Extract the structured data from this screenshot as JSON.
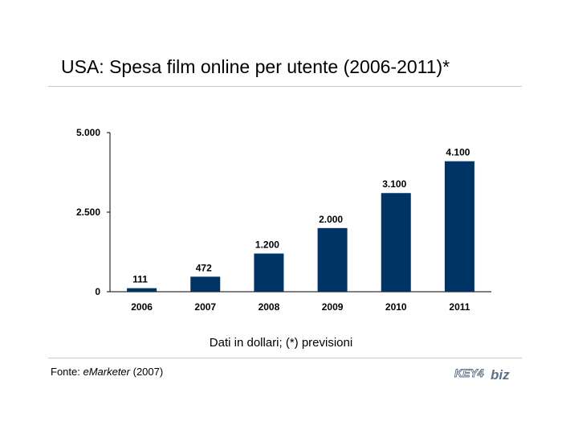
{
  "title": "USA: Spesa film online per utente (2006-2011)*",
  "note": "Dati in dollari; (*) previsioni",
  "source": {
    "prefix": "Fonte: ",
    "name": "eMarketer",
    "suffix": " (2007)"
  },
  "logo": {
    "text_left": "KEY4",
    "text_right": "biz",
    "color": "#5a6f8a"
  },
  "colors": {
    "bar": "#003366",
    "axis": "#000000"
  },
  "chart_data": {
    "type": "bar",
    "categories": [
      "2006",
      "2007",
      "2008",
      "2009",
      "2010",
      "2011"
    ],
    "values": [
      111,
      472,
      1200,
      2000,
      3100,
      4100
    ],
    "value_labels": [
      "111",
      "472",
      "1.200",
      "2.000",
      "3.100",
      "4.100"
    ],
    "yticks": [
      0,
      2500,
      5000
    ],
    "ytick_labels": [
      "0",
      "2.500",
      "5.000"
    ],
    "ylim": [
      0,
      5000
    ],
    "title": "USA: Spesa film online per utente (2006-2011)*",
    "xlabel": "",
    "ylabel": "",
    "grid": false,
    "legend": "none"
  }
}
